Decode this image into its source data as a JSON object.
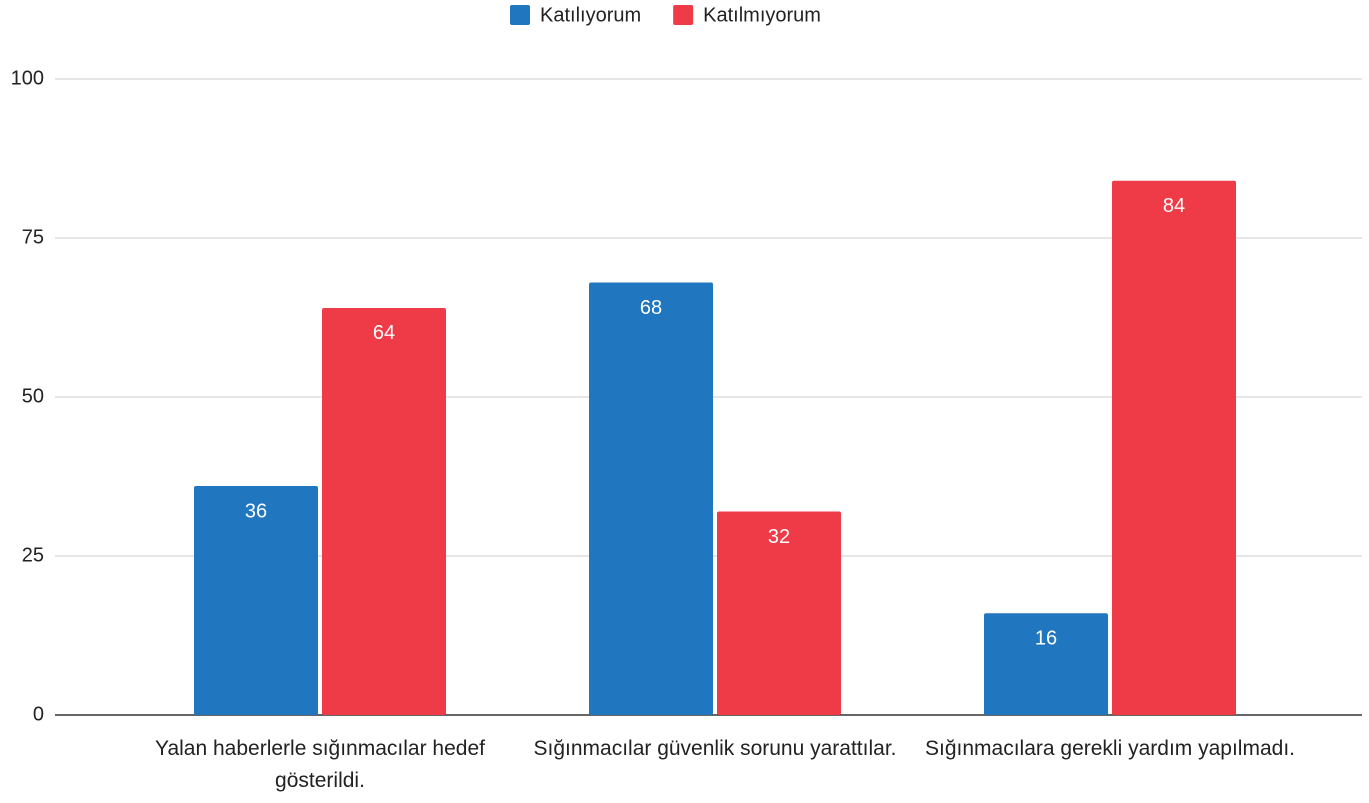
{
  "chart_data": {
    "type": "bar",
    "categories": [
      "Yalan haberlerle sığınmacılar hedef gösterildi.",
      "Sığınmacılar güvenlik sorunu yarattılar.",
      "Sığınmacılara gerekli yardım yapılmadı."
    ],
    "series": [
      {
        "name": "Katılıyorum",
        "color": "#2077bf",
        "values": [
          36,
          68,
          16
        ]
      },
      {
        "name": "Katılmıyorum",
        "color": "#ef3b47",
        "values": [
          64,
          32,
          84
        ]
      }
    ],
    "ylim": [
      0,
      100
    ],
    "yticks": [
      0,
      25,
      50,
      75,
      100
    ],
    "grid": true,
    "legend": "top"
  }
}
